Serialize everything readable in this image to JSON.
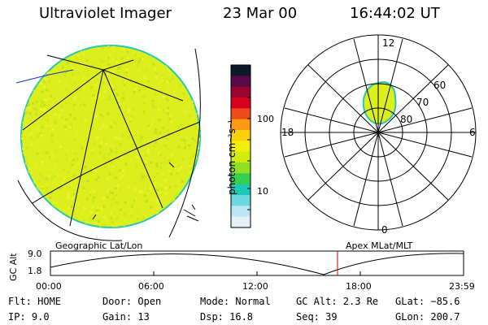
{
  "header": {
    "instrument": "Ultraviolet Imager",
    "date": "23 Mar 00",
    "time": "16:44:02 UT"
  },
  "colorbar": {
    "unit_label": "photon cm⁻²s⁻¹",
    "ticks": [
      "100",
      "10"
    ],
    "colors": [
      "#101828",
      "#5a0a4a",
      "#9a0530",
      "#d80020",
      "#ee4a18",
      "#fb9a10",
      "#fad00c",
      "#f4ee0c",
      "#cfec10",
      "#8ee020",
      "#34d050",
      "#20c8b8",
      "#6ad8e0",
      "#b9e6f0",
      "#e4f1f6"
    ]
  },
  "left_image": {
    "fill_color": "#dcee1c",
    "edge_color": "#24c8b4",
    "label": "Geographic Lat/Lon"
  },
  "polar_plot": {
    "lat_labels": [
      "80",
      "70",
      "60"
    ],
    "mlt_labels": {
      "top": "12",
      "left": "18",
      "right": "6",
      "bottom": "0"
    },
    "label": "Apex MLat/MLT",
    "fill_color": "#dcee1c"
  },
  "altitude_plot": {
    "y_axis_label": "GC Alt",
    "y_ticks": [
      "9.0",
      "1.8"
    ],
    "x_ticks": [
      "00:00",
      "06:00",
      "12:00",
      "18:00",
      "23:59"
    ],
    "marker_color": "#d00000"
  },
  "footer": {
    "row1": [
      "Flt: HOME",
      "Door: Open",
      "Mode: Normal",
      "GC Alt: 2.3 Re",
      "GLat: −85.6"
    ],
    "row2": [
      "IP:  9.0",
      "Gain: 13",
      "Dsp:   16.8",
      "Seq: 39",
      "GLon: 200.7"
    ]
  }
}
